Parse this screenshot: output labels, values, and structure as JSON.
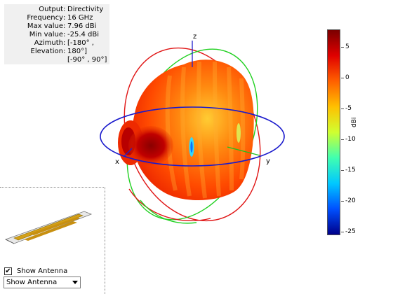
{
  "info": {
    "rows": [
      {
        "key": "Output",
        "value": "Directivity"
      },
      {
        "key": "Frequency",
        "value": "16 GHz"
      },
      {
        "key": "Max value",
        "value": "7.96 dBi"
      },
      {
        "key": "Min value",
        "value": "-25.4 dBi"
      },
      {
        "key": "Azimuth",
        "value": "[-180° ,"
      },
      {
        "key": "Elevation",
        "value": "180°]"
      },
      {
        "key": "",
        "value": "[-90° , 90°]"
      }
    ]
  },
  "axes": {
    "x": "x",
    "y": "y",
    "z": "z"
  },
  "colorbar": {
    "unit": "dBi",
    "ticks": [
      "5",
      "0",
      "-5",
      "-10",
      "-15",
      "-20",
      "-25"
    ],
    "max": 7.96,
    "min": -25.4,
    "colors": [
      "#7a0000",
      "#e00000",
      "#ff6000",
      "#ffc000",
      "#d0ff30",
      "#40ffb0",
      "#00c8ff",
      "#0050ff",
      "#00008a"
    ]
  },
  "controls": {
    "show_antenna_checkbox": {
      "label": "Show Antenna",
      "checked": true
    },
    "display_dropdown": {
      "value": "Show Antenna"
    }
  }
}
